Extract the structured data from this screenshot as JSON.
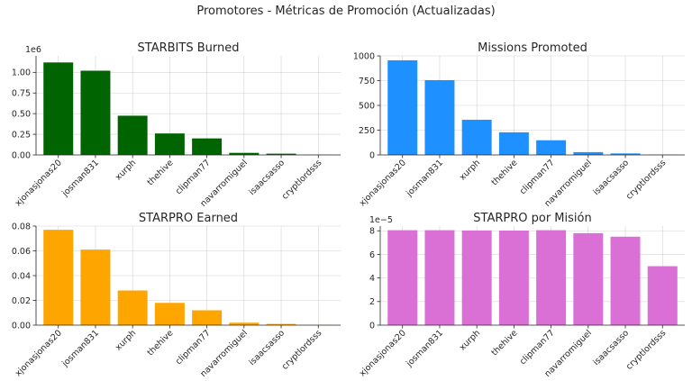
{
  "suptitle": "Promotores - Métricas de Promoción (Actualizadas)",
  "chart_data": [
    {
      "type": "bar",
      "title": "STARBITS Burned",
      "categories": [
        "xjonasjonas20",
        "josman831",
        "xurph",
        "thehive",
        "clipman77",
        "navarromiguel",
        "isaacsasso",
        "cryptlordsss"
      ],
      "values": [
        1120000,
        1020000,
        475000,
        260000,
        200000,
        25000,
        15000,
        1500
      ],
      "ylim": [
        0,
        1200000
      ],
      "yticks": [
        0,
        250000,
        500000,
        750000,
        1000000
      ],
      "ytick_labels": [
        "0.00",
        "0.25",
        "0.50",
        "0.75",
        "1.00"
      ],
      "multiplier_label": "1e6",
      "color": "#006400",
      "grid": true
    },
    {
      "type": "bar",
      "title": "Missions Promoted",
      "categories": [
        "xjonasjonas20",
        "josman831",
        "xurph",
        "thehive",
        "clipman77",
        "navarromiguel",
        "isaacsasso",
        "cryptlordsss"
      ],
      "values": [
        955,
        755,
        355,
        228,
        148,
        28,
        15,
        3
      ],
      "ylim": [
        0,
        1000
      ],
      "yticks": [
        0,
        250,
        500,
        750,
        1000
      ],
      "ytick_labels": [
        "0",
        "250",
        "500",
        "750",
        "1000"
      ],
      "multiplier_label": "",
      "color": "#1E90FF",
      "grid": true
    },
    {
      "type": "bar",
      "title": "STARPRO Earned",
      "categories": [
        "xjonasjonas20",
        "josman831",
        "xurph",
        "thehive",
        "clipman77",
        "navarromiguel",
        "isaacsasso",
        "cryptlordsss"
      ],
      "values": [
        0.077,
        0.061,
        0.028,
        0.018,
        0.012,
        0.002,
        0.001,
        0.0001
      ],
      "ylim": [
        0,
        0.08
      ],
      "yticks": [
        0,
        0.02,
        0.04,
        0.06,
        0.08
      ],
      "ytick_labels": [
        "0.00",
        "0.02",
        "0.04",
        "0.06",
        "0.08"
      ],
      "multiplier_label": "",
      "color": "#FFA500",
      "grid": true
    },
    {
      "type": "bar",
      "title": "STARPRO por Misión",
      "categories": [
        "xjonasjonas20",
        "josman831",
        "xurph",
        "thehive",
        "clipman77",
        "navarromiguel",
        "isaacsasso",
        "cryptlordsss"
      ],
      "values": [
        8.05e-05,
        8.05e-05,
        8.03e-05,
        8.02e-05,
        8.05e-05,
        7.8e-05,
        7.5e-05,
        5e-05
      ],
      "ylim": [
        0,
        8.4e-05
      ],
      "yticks": [
        0,
        2e-05,
        4e-05,
        6e-05,
        8e-05
      ],
      "ytick_labels": [
        "0",
        "2",
        "4",
        "6",
        "8"
      ],
      "multiplier_label": "1e−5",
      "color": "#DA70D6",
      "grid": true
    }
  ]
}
